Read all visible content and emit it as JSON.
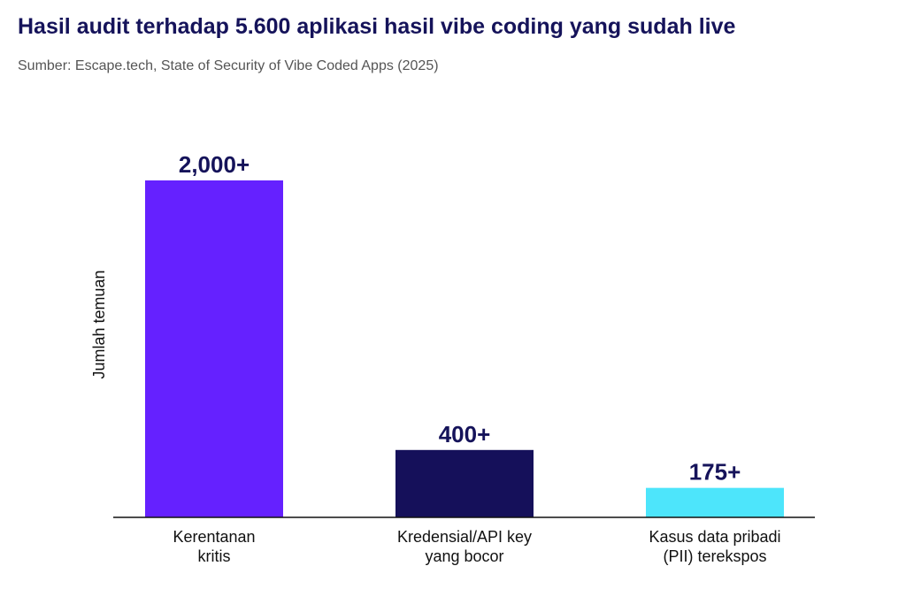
{
  "chart_data": {
    "type": "bar",
    "title": "Hasil audit terhadap 5.600 aplikasi hasil vibe coding yang sudah live",
    "subtitle": "Sumber: Escape.tech, State of Security of Vibe Coded Apps (2025)",
    "ylabel": "Jumlah temuan",
    "xlabel": "",
    "categories": [
      [
        "Kerentanan",
        "kritis"
      ],
      [
        "Kredensial/API key",
        "yang bocor"
      ],
      [
        "Kasus data pribadi",
        "(PII) terekspos"
      ]
    ],
    "values": [
      2000,
      400,
      175
    ],
    "data_labels": [
      "2,000+",
      "400+",
      "175+"
    ],
    "colors": [
      "#6521ff",
      "#15105a",
      "#4de5fb"
    ],
    "label_color": "#15135a",
    "ylim": [
      0,
      2000
    ],
    "grid": false
  }
}
